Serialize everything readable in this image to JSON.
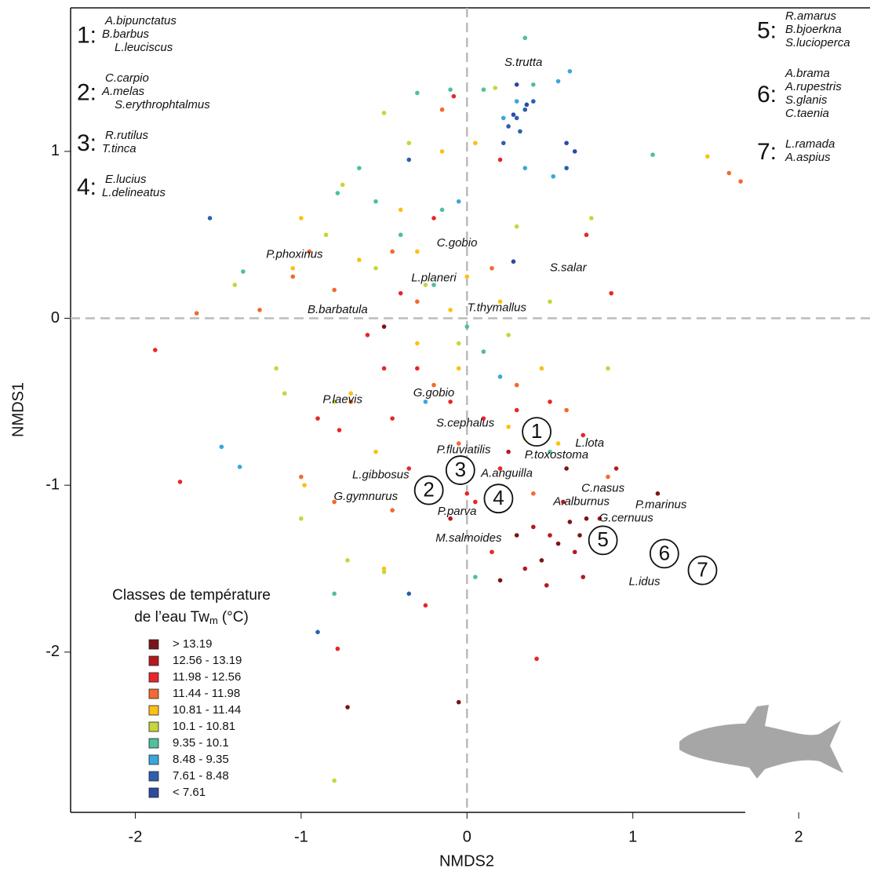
{
  "chart_data": {
    "type": "scatter",
    "x_label": "NMDS2",
    "y_label": "NMDS1",
    "xlim": [
      -2.39,
      2.43
    ],
    "ylim": [
      -2.96,
      1.86
    ],
    "xticks": [
      -2,
      -1,
      0,
      1,
      2
    ],
    "yticks": [
      -2,
      -1,
      0,
      1
    ],
    "vlines": [
      0
    ],
    "hlines": [
      0
    ],
    "legend_title": [
      "Classes de température",
      "de l’eau Tw",
      "m",
      "(°C)"
    ],
    "legend_corner": "bottom-left",
    "series": [
      {
        "name": "> 13.19",
        "color": "#7b1416",
        "x": [
          0.62,
          0.68,
          0.55,
          0.72,
          0.45,
          -0.05,
          -0.72,
          1.15,
          0.2,
          0.6,
          -0.5,
          0.3
        ],
        "y": [
          -1.22,
          -1.3,
          -1.35,
          -1.2,
          -1.45,
          -2.3,
          -2.33,
          -1.05,
          -1.57,
          -0.9,
          -0.05,
          -1.3
        ]
      },
      {
        "name": "12.56 - 13.19",
        "color": "#b5191e",
        "x": [
          0.5,
          0.4,
          0.65,
          0.8,
          0.35,
          0.48,
          0.7,
          0.58,
          0.85,
          0.9,
          0.25,
          -0.1,
          0.42
        ],
        "y": [
          -1.3,
          -1.25,
          -1.4,
          -1.2,
          -1.5,
          -1.6,
          -1.55,
          -1.1,
          -1.3,
          -0.9,
          -0.8,
          -1.2,
          -0.72
        ]
      },
      {
        "name": "11.98 - 12.56",
        "color": "#e8262a",
        "x": [
          -1.88,
          -1.73,
          -0.9,
          -0.3,
          -0.1,
          0.1,
          0.3,
          0.2,
          0,
          -0.2,
          -0.5,
          -0.6,
          -0.4,
          0.72,
          0.87,
          0.42,
          -0.78,
          0.05,
          0.5,
          0.7,
          -0.35,
          0.15,
          -0.45,
          -0.77,
          -0.25,
          -0.2,
          0.2,
          -0.08
        ],
        "y": [
          -0.19,
          -0.98,
          -0.6,
          -0.3,
          -0.5,
          -0.6,
          -0.55,
          -0.9,
          -1.05,
          -1.0,
          -0.3,
          -0.1,
          0.15,
          0.5,
          0.15,
          -2.04,
          -1.98,
          -1.1,
          -0.5,
          -0.7,
          -0.9,
          -1.4,
          -0.6,
          -0.67,
          -1.72,
          0.6,
          0.95,
          1.33
        ]
      },
      {
        "name": "11.44 - 11.98",
        "color": "#f26a2e",
        "x": [
          -1.63,
          -1.25,
          -1.0,
          -0.8,
          -0.7,
          -0.3,
          0.3,
          0.6,
          0.85,
          -0.05,
          0.4,
          -0.45,
          -0.2,
          -0.45,
          -0.95,
          -0.8,
          1.58,
          1.65,
          -0.15,
          0.15,
          -1.05
        ],
        "y": [
          0.03,
          0.05,
          -0.95,
          -1.1,
          -0.5,
          0.1,
          -0.4,
          -0.55,
          -0.95,
          -0.75,
          -1.05,
          -1.15,
          -0.4,
          0.4,
          0.4,
          0.17,
          0.87,
          0.82,
          1.25,
          0.3,
          0.25
        ]
      },
      {
        "name": "10.81 - 11.44",
        "color": "#fdc010",
        "x": [
          -0.05,
          0.1,
          0.25,
          0.35,
          -0.3,
          -0.1,
          0.2,
          0.45,
          -0.55,
          -0.98,
          -0.7,
          -0.4,
          -0.65,
          -1.05,
          -1.0,
          -0.15,
          0.05,
          1.45,
          0.55,
          0,
          -0.5,
          -0.3
        ],
        "y": [
          -0.3,
          -0.2,
          -0.65,
          -0.72,
          -0.15,
          0.05,
          0.1,
          -0.3,
          -0.8,
          -1.0,
          -0.45,
          0.65,
          0.35,
          0.3,
          0.6,
          1.0,
          1.05,
          0.97,
          -0.75,
          0.25,
          -1.5,
          0.4
        ]
      },
      {
        "name": "10.1 - 10.81",
        "color": "#c6d63c",
        "x": [
          -1.4,
          -1.15,
          -1.1,
          -1.0,
          -0.8,
          -0.85,
          -0.55,
          -0.25,
          -0.05,
          0.25,
          -0.8,
          -0.72,
          -0.5,
          0.5,
          -0.5,
          -0.35,
          -0.75,
          0.75,
          0.85,
          0.3,
          0.17
        ],
        "y": [
          0.2,
          -0.3,
          -0.45,
          -1.2,
          -0.5,
          0.5,
          0.3,
          0.2,
          -0.15,
          -0.1,
          -2.77,
          -1.45,
          -1.52,
          0.1,
          1.23,
          1.05,
          0.8,
          0.6,
          -0.3,
          0.55,
          1.38
        ]
      },
      {
        "name": "9.35 - 10.1",
        "color": "#4ebf9f",
        "x": [
          -1.35,
          -0.78,
          -0.65,
          -0.4,
          -0.2,
          0,
          -0.3,
          -0.1,
          0.35,
          0.1,
          1.12,
          -0.55,
          -0.8,
          0.05,
          0.5,
          -0.15,
          0.4,
          0.1
        ],
        "y": [
          0.28,
          0.75,
          0.9,
          0.5,
          0.2,
          -0.05,
          1.35,
          1.37,
          1.68,
          1.37,
          0.98,
          0.7,
          -1.65,
          -1.55,
          -0.8,
          0.65,
          1.4,
          -0.2
        ]
      },
      {
        "name": "8.48 - 9.35",
        "color": "#3aa6dc",
        "x": [
          -1.48,
          -1.37,
          0.55,
          0.62,
          0.3,
          0.22,
          0.52,
          0.35,
          -0.05,
          0.2,
          -0.25
        ],
        "y": [
          -0.77,
          -0.89,
          1.42,
          1.48,
          1.3,
          1.2,
          0.85,
          0.9,
          0.7,
          -0.35,
          -0.5
        ]
      },
      {
        "name": "7.61 - 8.48",
        "color": "#2e5fae",
        "x": [
          -1.55,
          -0.9,
          0.35,
          0.3,
          0.22,
          0.4,
          0.32,
          -0.35,
          0.6,
          0.25,
          -0.35
        ],
        "y": [
          0.6,
          -1.88,
          1.25,
          1.2,
          1.05,
          1.3,
          1.12,
          0.95,
          0.9,
          1.15,
          -1.65
        ]
      },
      {
        "name": "< 7.61",
        "color": "#2b4a9e",
        "x": [
          0.65,
          0.3,
          0.28,
          0.36,
          0.6,
          0.28
        ],
        "y": [
          1.0,
          1.4,
          1.22,
          1.28,
          1.05,
          0.34
        ]
      }
    ],
    "annotations": [
      {
        "text": "S.trutta",
        "x": 0.34,
        "y": 1.53
      },
      {
        "text": "C.gobio",
        "x": -0.06,
        "y": 0.45
      },
      {
        "text": "S.salar",
        "x": 0.61,
        "y": 0.3
      },
      {
        "text": "P.phoxinus",
        "x": -1.04,
        "y": 0.38
      },
      {
        "text": "L.planeri",
        "x": -0.2,
        "y": 0.24
      },
      {
        "text": "T.thymallus",
        "x": 0.18,
        "y": 0.06
      },
      {
        "text": "B.barbatula",
        "x": -0.78,
        "y": 0.05
      },
      {
        "text": "P.laevis",
        "x": -0.75,
        "y": -0.49
      },
      {
        "text": "G.gobio",
        "x": -0.2,
        "y": -0.45
      },
      {
        "text": "S.cephalus",
        "x": -0.01,
        "y": -0.63
      },
      {
        "text": "L.lota",
        "x": 0.74,
        "y": -0.75
      },
      {
        "text": "P.fluviatilis",
        "x": -0.02,
        "y": -0.79
      },
      {
        "text": "P.toxostoma",
        "x": 0.54,
        "y": -0.82
      },
      {
        "text": "L.gibbosus",
        "x": -0.52,
        "y": -0.94
      },
      {
        "text": "A.anguilla",
        "x": 0.24,
        "y": -0.93
      },
      {
        "text": "C.nasus",
        "x": 0.82,
        "y": -1.02
      },
      {
        "text": "G.gymnurus",
        "x": -0.61,
        "y": -1.07
      },
      {
        "text": "A.alburnus",
        "x": 0.69,
        "y": -1.1
      },
      {
        "text": "P.marinus",
        "x": 1.17,
        "y": -1.12
      },
      {
        "text": "P.parva",
        "x": -0.06,
        "y": -1.16
      },
      {
        "text": "G.cernuus",
        "x": 0.96,
        "y": -1.2
      },
      {
        "text": "M.salmoides",
        "x": 0.01,
        "y": -1.32
      },
      {
        "text": "L.idus",
        "x": 1.07,
        "y": -1.58
      }
    ],
    "group_markers": [
      {
        "label": "1",
        "x": 0.42,
        "y": -0.68
      },
      {
        "label": "2",
        "x": -0.23,
        "y": -1.03
      },
      {
        "label": "3",
        "x": -0.04,
        "y": -0.91
      },
      {
        "label": "4",
        "x": 0.19,
        "y": -1.08
      },
      {
        "label": "5",
        "x": 0.82,
        "y": -1.33
      },
      {
        "label": "6",
        "x": 1.19,
        "y": -1.41
      },
      {
        "label": "7",
        "x": 1.42,
        "y": -1.51
      }
    ],
    "groups_left": [
      {
        "number": "1:",
        "species": [
          "A.bipunctatus",
          "B.barbus",
          "L.leuciscus"
        ]
      },
      {
        "number": "2:",
        "species": [
          "C.carpio",
          "A.melas",
          "S.erythrophtalmus"
        ]
      },
      {
        "number": "3:",
        "species": [
          "R.rutilus",
          "T.tinca"
        ]
      },
      {
        "number": "4:",
        "species": [
          "E.lucius",
          "L.delineatus"
        ]
      }
    ],
    "groups_right": [
      {
        "number": "5:",
        "species": [
          "R.amarus",
          "B.bjoerkna",
          "S.lucioperca"
        ]
      },
      {
        "number": "6:",
        "species": [
          "A.brama",
          "A.rupestris",
          "S.glanis",
          "C.taenia"
        ]
      },
      {
        "number": "7:",
        "species": [
          "L.ramada",
          "A.aspius"
        ]
      }
    ]
  }
}
